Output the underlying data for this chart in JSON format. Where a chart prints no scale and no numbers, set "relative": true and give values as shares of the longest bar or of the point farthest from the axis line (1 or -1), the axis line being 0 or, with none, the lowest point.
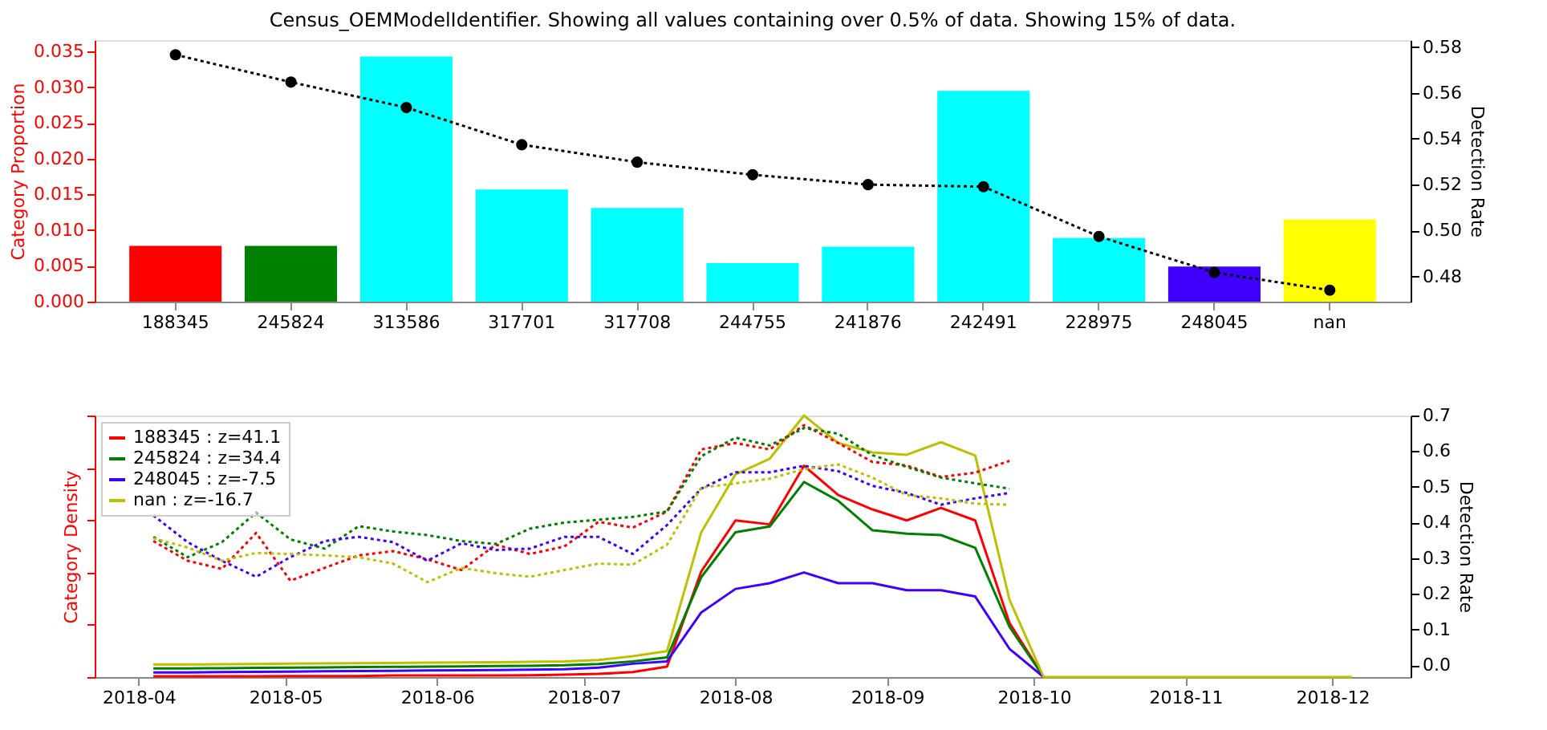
{
  "chart_data": [
    {
      "type": "bar",
      "title": "Census_OEMModelIdentifier. Showing all values containing over 0.5% of data. Showing 15% of data.",
      "ylabel": "Category Proportion",
      "y2label": "Detection Rate",
      "categories": [
        "188345",
        "245824",
        "313586",
        "317701",
        "317708",
        "244755",
        "241876",
        "242491",
        "228975",
        "248045",
        "nan"
      ],
      "ylim": [
        0,
        0.0366
      ],
      "yticks": [
        {
          "value": 0,
          "label": "0.000"
        },
        0.005,
        {
          "value": 0.01,
          "label": "0.010"
        },
        0.015,
        {
          "value": 0.02,
          "label": "0.020"
        },
        0.025,
        {
          "value": 0.03,
          "label": "0.030"
        },
        0.035
      ],
      "y2lim": [
        0.469,
        0.583
      ],
      "y2ticks": [
        0.48,
        {
          "value": 0.5,
          "label": "0.50"
        },
        0.52,
        0.54,
        0.56,
        0.58
      ],
      "series": [
        {
          "type": "bar",
          "colors": [
            "#ff0000",
            "#008000",
            "#00ffff",
            "#00ffff",
            "#00ffff",
            "#00ffff",
            "#00ffff",
            "#00ffff",
            "#00ffff",
            "#4000ff",
            "#ffff00"
          ],
          "values": [
            0.0078,
            0.0078,
            0.0343,
            0.0157,
            0.0131,
            0.0054,
            0.0077,
            0.0295,
            0.0089,
            0.0049,
            0.0115
          ]
        },
        {
          "type": "line",
          "axis": "y2",
          "color": "#000000",
          "marker": "circle",
          "line_style": "dotted",
          "values": [
            0.5766,
            0.5647,
            0.5536,
            0.5374,
            0.5298,
            0.5243,
            0.52,
            0.5191,
            0.4974,
            0.4817,
            0.474
          ]
        }
      ]
    },
    {
      "type": "line",
      "relative": true,
      "ylabel": "Category Density",
      "y2label": "Detection Rate",
      "legend": "top left",
      "xlim": [
        "2018-03-23",
        "2018-12-17"
      ],
      "xticks": [
        "2018-04",
        "2018-05",
        "2018-06",
        "2018-07",
        "2018-08",
        "2018-09",
        "2018-10",
        "2018-11",
        "2018-12"
      ],
      "y2lim": [
        -0.033,
        0.7
      ],
      "y2ticks": [
        {
          "value": 0,
          "label": "0.0"
        },
        0.1,
        0.2,
        0.3,
        0.4,
        0.5,
        0.6,
        0.7
      ],
      "x": [
        "2018-04-04",
        "2018-04-11",
        "2018-04-18",
        "2018-04-25",
        "2018-05-02",
        "2018-05-09",
        "2018-05-16",
        "2018-05-23",
        "2018-05-30",
        "2018-06-06",
        "2018-06-13",
        "2018-06-20",
        "2018-06-27",
        "2018-07-04",
        "2018-07-11",
        "2018-07-18",
        "2018-07-25",
        "2018-08-01",
        "2018-08-08",
        "2018-08-15",
        "2018-08-22",
        "2018-08-29",
        "2018-09-05",
        "2018-09-12",
        "2018-09-19",
        "2018-09-26",
        "2018-10-03",
        "2018-10-10",
        "2018-10-17",
        "2018-10-24",
        "2018-10-31",
        "2018-11-07",
        "2018-11-14",
        "2018-11-21",
        "2018-11-28",
        "2018-12-05"
      ],
      "series": [
        {
          "name": "188345 : z=41.1",
          "color": "#ff0000",
          "line_style": "solid",
          "values": [
            0.003,
            0.003,
            0.003,
            0.003,
            0.004,
            0.004,
            0.004,
            0.006,
            0.006,
            0.006,
            0.006,
            0.007,
            0.009,
            0.012,
            0.019,
            0.04,
            0.404,
            0.599,
            0.584,
            0.808,
            0.696,
            0.641,
            0.599,
            0.647,
            0.599,
            0.207,
            0,
            null,
            null,
            null,
            null,
            null,
            null,
            null,
            null,
            null
          ]
        },
        {
          "name": "245824 : z=34.4",
          "color": "#008000",
          "line_style": "solid",
          "values": [
            0.033,
            0.033,
            0.034,
            0.035,
            0.036,
            0.037,
            0.038,
            0.039,
            0.04,
            0.041,
            0.042,
            0.043,
            0.045,
            0.05,
            0.06,
            0.075,
            0.382,
            0.554,
            0.576,
            0.746,
            0.674,
            0.561,
            0.548,
            0.543,
            0.494,
            0.192,
            0,
            null,
            null,
            null,
            null,
            null,
            null,
            null,
            null,
            null
          ]
        },
        {
          "name": "248045 : z=-7.5",
          "color": "#4000ff",
          "line_style": "solid",
          "values": [
            0.018,
            0.018,
            0.019,
            0.02,
            0.021,
            0.022,
            0.023,
            0.024,
            0.025,
            0.026,
            0.027,
            0.028,
            0.03,
            0.036,
            0.051,
            0.06,
            0.247,
            0.337,
            0.359,
            0.4,
            0.359,
            0.359,
            0.332,
            0.332,
            0.308,
            0.108,
            0,
            null,
            null,
            null,
            null,
            null,
            null,
            null,
            null,
            null
          ]
        },
        {
          "name": "nan : z=-16.7",
          "color": "#bfbf00",
          "line_style": "solid",
          "values": [
            0.048,
            0.048,
            0.049,
            0.05,
            0.051,
            0.052,
            0.053,
            0.054,
            0.055,
            0.056,
            0.057,
            0.058,
            0.06,
            0.065,
            0.08,
            0.099,
            0.554,
            0.775,
            0.835,
            1,
            0.895,
            0.859,
            0.85,
            0.898,
            0.847,
            0.296,
            0,
            0,
            0,
            0,
            0,
            0,
            0,
            0,
            0,
            0
          ]
        },
        {
          "axis": "y2",
          "color": "#ff0000",
          "line_style": "dotted",
          "x": [
            "2018-04-04",
            "2018-04-11",
            "2018-04-18",
            "2018-04-25",
            "2018-05-02",
            "2018-05-09",
            "2018-05-16",
            "2018-05-23",
            "2018-05-30",
            "2018-06-06",
            "2018-06-13",
            "2018-06-20",
            "2018-06-27",
            "2018-07-04",
            "2018-07-11",
            "2018-07-18",
            "2018-07-25",
            "2018-08-01",
            "2018-08-08",
            "2018-08-15",
            "2018-08-22",
            "2018-08-29",
            "2018-09-05",
            "2018-09-12",
            "2018-09-19",
            "2018-09-26"
          ],
          "values": [
            0.348,
            0.293,
            0.27,
            0.371,
            0.237,
            0.273,
            0.308,
            0.32,
            0.297,
            0.267,
            0.338,
            0.312,
            0.333,
            0.402,
            0.386,
            0.431,
            0.605,
            0.623,
            0.605,
            0.673,
            0.623,
            0.57,
            0.56,
            0.528,
            0.54,
            0.573
          ]
        },
        {
          "axis": "y2",
          "color": "#008000",
          "line_style": "dotted",
          "x": [
            "2018-04-04",
            "2018-04-11",
            "2018-04-18",
            "2018-04-25",
            "2018-05-02",
            "2018-05-09",
            "2018-05-16",
            "2018-05-23",
            "2018-05-30",
            "2018-06-06",
            "2018-06-13",
            "2018-06-20",
            "2018-06-27",
            "2018-07-04",
            "2018-07-11",
            "2018-07-18",
            "2018-07-25",
            "2018-08-01",
            "2018-08-08",
            "2018-08-15",
            "2018-08-22",
            "2018-08-29",
            "2018-09-05",
            "2018-09-12",
            "2018-09-19",
            "2018-09-26"
          ],
          "values": [
            0.36,
            0.303,
            0.345,
            0.428,
            0.353,
            0.327,
            0.39,
            0.375,
            0.365,
            0.348,
            0.34,
            0.383,
            0.4,
            0.408,
            0.416,
            0.431,
            0.586,
            0.638,
            0.616,
            0.665,
            0.649,
            0.589,
            0.556,
            0.526,
            0.51,
            0.495
          ]
        },
        {
          "axis": "y2",
          "color": "#4000ff",
          "line_style": "dotted",
          "x": [
            "2018-04-04",
            "2018-04-11",
            "2018-04-18",
            "2018-04-25",
            "2018-05-02",
            "2018-05-09",
            "2018-05-16",
            "2018-05-23",
            "2018-05-30",
            "2018-06-06",
            "2018-06-13",
            "2018-06-20",
            "2018-06-27",
            "2018-07-04",
            "2018-07-11",
            "2018-07-18",
            "2018-07-25",
            "2018-08-01",
            "2018-08-08",
            "2018-08-15",
            "2018-08-22",
            "2018-08-29",
            "2018-09-05",
            "2018-09-12",
            "2018-09-19",
            "2018-09-26"
          ],
          "values": [
            0.42,
            0.345,
            0.293,
            0.248,
            0.303,
            0.348,
            0.36,
            0.345,
            0.293,
            0.342,
            0.323,
            0.327,
            0.36,
            0.36,
            0.312,
            0.393,
            0.495,
            0.541,
            0.541,
            0.559,
            0.544,
            0.503,
            0.483,
            0.45,
            0.468,
            0.483
          ]
        },
        {
          "axis": "y2",
          "color": "#bfbf00",
          "line_style": "dotted",
          "x": [
            "2018-04-04",
            "2018-04-11",
            "2018-04-18",
            "2018-04-25",
            "2018-05-02",
            "2018-05-09",
            "2018-05-16",
            "2018-05-23",
            "2018-05-30",
            "2018-06-06",
            "2018-06-13",
            "2018-06-20",
            "2018-06-27",
            "2018-07-04",
            "2018-07-11",
            "2018-07-18",
            "2018-07-25",
            "2018-08-01",
            "2018-08-08",
            "2018-08-15",
            "2018-08-22",
            "2018-08-29",
            "2018-09-05",
            "2018-09-12",
            "2018-09-19",
            "2018-09-26"
          ],
          "values": [
            0.356,
            0.33,
            0.293,
            0.315,
            0.312,
            0.308,
            0.303,
            0.285,
            0.233,
            0.273,
            0.258,
            0.248,
            0.267,
            0.285,
            0.282,
            0.338,
            0.498,
            0.51,
            0.523,
            0.55,
            0.563,
            0.526,
            0.477,
            0.468,
            0.453,
            0.45
          ]
        }
      ]
    }
  ]
}
